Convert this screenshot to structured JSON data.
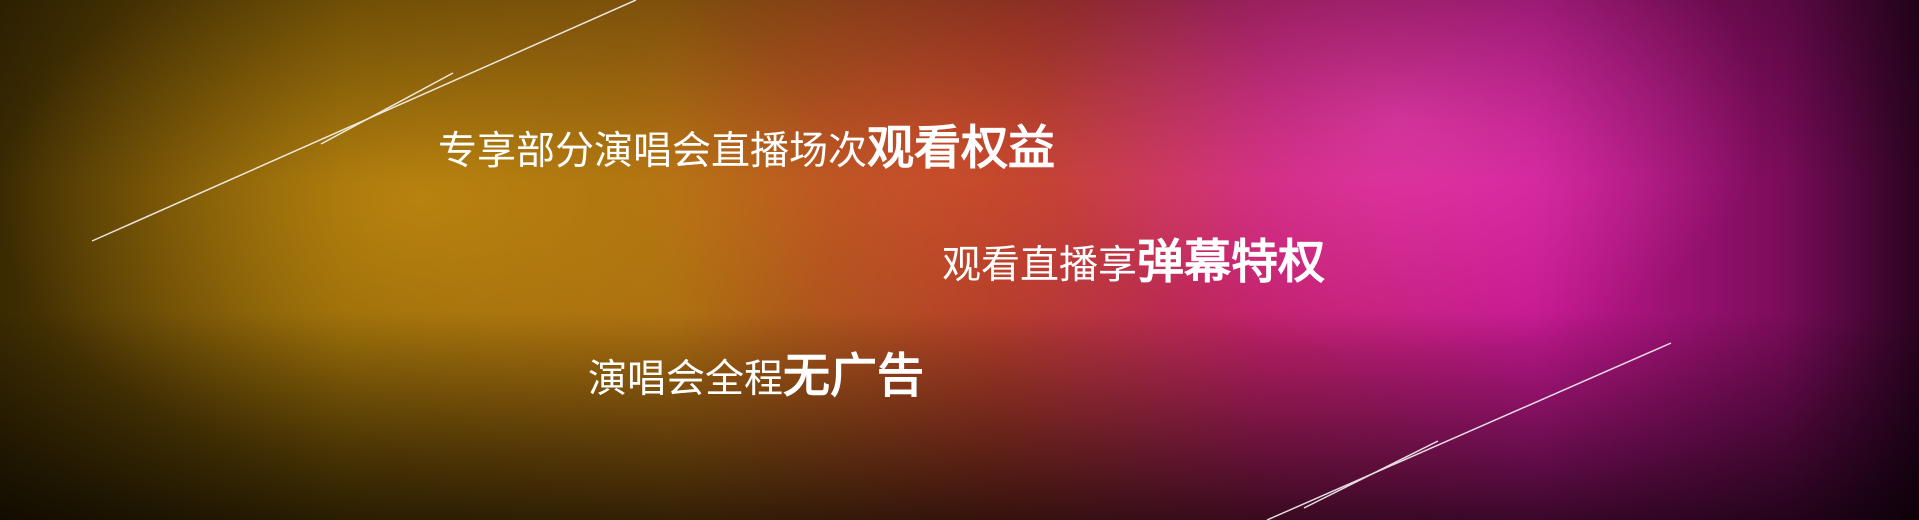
{
  "banner": {
    "lines": [
      {
        "text": "专享部分演唱会直播场次",
        "highlight": "观看权益"
      },
      {
        "text": "观看直播享",
        "highlight": "弹幕特权"
      },
      {
        "text": "演唱会全程",
        "highlight": "无广告"
      }
    ]
  }
}
